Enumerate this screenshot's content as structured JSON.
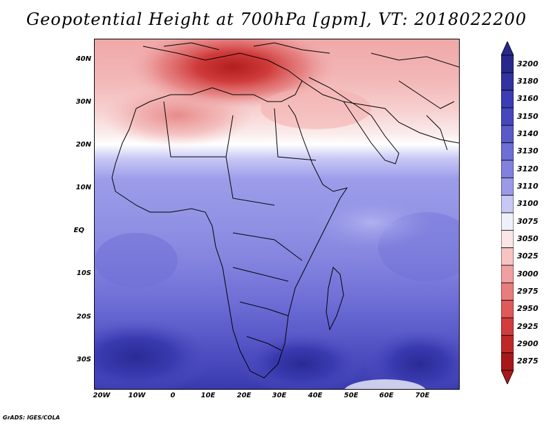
{
  "title": "Geopotential Height at 700hPa [gpm], VT: 2018022200",
  "footer": "GrADS: IGES/COLA",
  "axes": {
    "lat_labels": [
      "40N",
      "30N",
      "20N",
      "10N",
      "EQ",
      "10S",
      "20S",
      "30S"
    ],
    "lon_labels": [
      "20W",
      "10W",
      "0",
      "10E",
      "20E",
      "30E",
      "40E",
      "50E",
      "60E",
      "70E"
    ]
  },
  "colorbar": {
    "levels": [
      "3200",
      "3180",
      "3160",
      "3150",
      "3140",
      "3130",
      "3120",
      "3110",
      "3100",
      "3075",
      "3050",
      "3025",
      "3000",
      "2975",
      "2950",
      "2925",
      "2900",
      "2875"
    ],
    "colors": [
      "#28288c",
      "#3232a0",
      "#3c3cb4",
      "#4646be",
      "#5a5ac8",
      "#6e6ed4",
      "#8282de",
      "#9a9ae8",
      "#c8c8f5",
      "#f0f0fa",
      "#fae6e6",
      "#f7c4c4",
      "#f0a0a0",
      "#e87d7d",
      "#e05a5a",
      "#d23c3c",
      "#c02828",
      "#a81818"
    ]
  },
  "chart_data": {
    "type": "heatmap",
    "title": "Geopotential Height at 700hPa [gpm], VT: 2018022200",
    "variable": "Geopotential Height at 700hPa",
    "units": "gpm",
    "valid_time": "2018022200",
    "xlim": [
      "23W",
      "80E"
    ],
    "ylim": [
      "37S",
      "45N"
    ],
    "x_ticks": [
      "20W",
      "10W",
      "0",
      "10E",
      "20E",
      "30E",
      "40E",
      "50E",
      "60E",
      "70E"
    ],
    "y_ticks": [
      "40N",
      "30N",
      "20N",
      "10N",
      "EQ",
      "10S",
      "20S",
      "30S"
    ],
    "contour_levels": [
      2875,
      2900,
      2925,
      2950,
      2975,
      3000,
      3025,
      3050,
      3075,
      3100,
      3110,
      3120,
      3130,
      3140,
      3150,
      3160,
      3180,
      3200
    ],
    "features": [
      {
        "region": "Mediterranean / southern Europe",
        "value_range": [
          2900,
          2975
        ]
      },
      {
        "region": "North Africa (Sahara)",
        "value_range": [
          3000,
          3050
        ]
      },
      {
        "region": "Arabian Peninsula / southwest Asia",
        "value_range": [
          3050,
          3100
        ]
      },
      {
        "region": "Sahel / ~18N zonal band",
        "value_range": [
          3100,
          3110
        ]
      },
      {
        "region": "Tropical Africa and Indian Ocean",
        "value_range": [
          3120,
          3140
        ]
      },
      {
        "region": "Southern subtropical Atlantic and Indian Ocean",
        "value_range": [
          3150,
          3180
        ]
      }
    ]
  }
}
